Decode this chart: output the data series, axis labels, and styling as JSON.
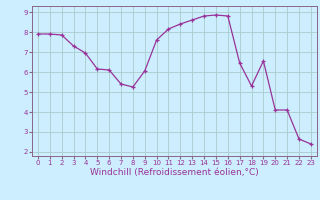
{
  "x": [
    0,
    1,
    2,
    3,
    4,
    5,
    6,
    7,
    8,
    9,
    10,
    11,
    12,
    13,
    14,
    15,
    16,
    17,
    18,
    19,
    20,
    21,
    22,
    23
  ],
  "y": [
    7.9,
    7.9,
    7.85,
    7.3,
    6.95,
    6.15,
    6.1,
    5.4,
    5.25,
    6.05,
    7.6,
    8.15,
    8.4,
    8.6,
    8.8,
    8.85,
    8.8,
    6.45,
    5.3,
    6.55,
    4.1,
    4.1,
    2.65,
    2.4
  ],
  "line_color": "#993399",
  "marker": "+",
  "marker_size": 3,
  "linewidth": 0.9,
  "bg_color": "#cceeff",
  "grid_color": "#aacccc",
  "xlabel": "Windchill (Refroidissement éolien,°C)",
  "ylim_min": 1.8,
  "ylim_max": 9.3,
  "xlim_min": -0.5,
  "xlim_max": 23.5,
  "yticks": [
    2,
    3,
    4,
    5,
    6,
    7,
    8,
    9
  ],
  "xticks": [
    0,
    1,
    2,
    3,
    4,
    5,
    6,
    7,
    8,
    9,
    10,
    11,
    12,
    13,
    14,
    15,
    16,
    17,
    18,
    19,
    20,
    21,
    22,
    23
  ],
  "tick_fontsize": 5.0,
  "xlabel_fontsize": 6.5,
  "axis_color": "#993399",
  "spine_color": "#886688"
}
